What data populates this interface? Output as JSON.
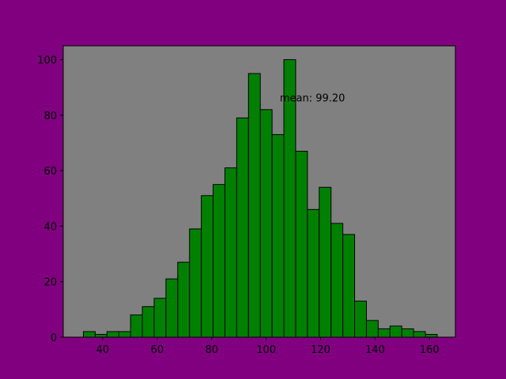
{
  "chart_data": {
    "type": "bar",
    "subtype": "histogram",
    "bin_start": 32.9,
    "bin_width": 4.33,
    "values": [
      2,
      1,
      2,
      2,
      8,
      11,
      14,
      21,
      27,
      39,
      51,
      55,
      61,
      79,
      95,
      82,
      73,
      100,
      67,
      46,
      54,
      41,
      37,
      13,
      6,
      3,
      4,
      3,
      2,
      1
    ],
    "xlim": [
      25.5,
      169.5
    ],
    "ylim": [
      0,
      105
    ],
    "xticks": [
      40,
      60,
      80,
      100,
      120,
      140,
      160
    ],
    "yticks": [
      0,
      20,
      40,
      60,
      80,
      100
    ],
    "annotation": {
      "text": "mean: 99.20",
      "x": 105,
      "y": 85
    },
    "grid": false,
    "title": "",
    "xlabel": "",
    "ylabel": "",
    "colors": {
      "figure_bg": "#800080",
      "axes_bg": "#808080",
      "bar_fill": "#008000",
      "bar_edge": "#000000"
    }
  }
}
